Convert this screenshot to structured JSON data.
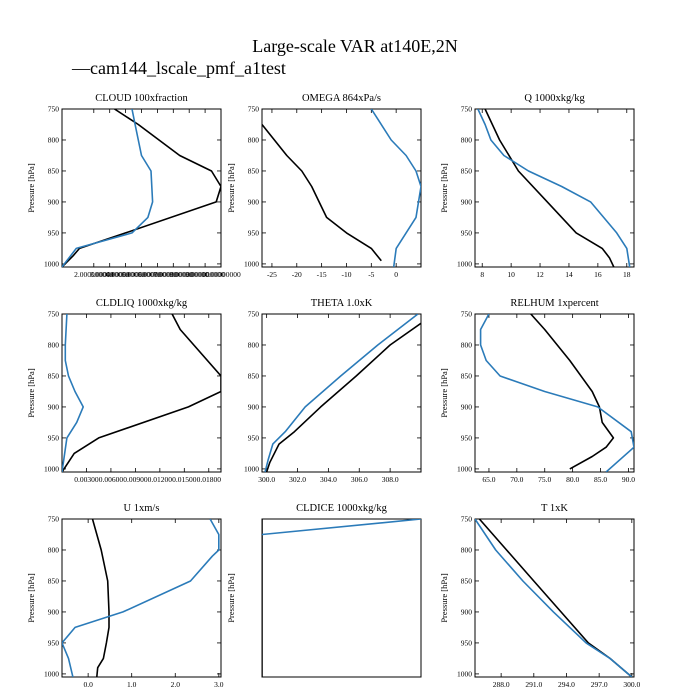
{
  "title": "Large-scale VAR at140E,2N",
  "legend": {
    "label": "cam144_lscale_pmf_a1test",
    "color": "#2b7bb9",
    "glyph": "—"
  },
  "colors": {
    "ref": "#000000",
    "exp": "#2b7bb9"
  },
  "chart_data": [
    {
      "type": "line",
      "title": "CLOUD  100xfraction",
      "ylabel": "Pressure [hPa]",
      "ylim": [
        1005,
        750
      ],
      "yticks": [
        750,
        800,
        850,
        900,
        950,
        1000
      ],
      "xlim": [
        0,
        1.0
      ],
      "xticks": [
        0.2,
        0.3,
        0.4,
        0.5,
        0.6,
        0.7,
        0.8,
        0.9,
        1.0
      ],
      "xticklabels": [
        "2.000000000",
        "3.000000000",
        "4.000000000",
        "5.000000000",
        "6.000000000",
        "7.000000000",
        "8.000000000",
        "9.000000000",
        "10.00000000"
      ],
      "series": [
        {
          "name": "ref",
          "x": [
            0.33,
            0.48,
            0.74,
            0.94,
            1.0,
            0.97,
            0.4,
            0.11,
            0.07,
            0.0
          ],
          "y": [
            750,
            775,
            825,
            850,
            875,
            900,
            950,
            975,
            987,
            1005
          ]
        },
        {
          "name": "exp",
          "x": [
            0.44,
            0.46,
            0.48,
            0.5,
            0.56,
            0.57,
            0.54,
            0.44,
            0.09,
            0.0
          ],
          "y": [
            750,
            775,
            800,
            825,
            850,
            900,
            925,
            950,
            975,
            1005
          ]
        }
      ]
    },
    {
      "type": "line",
      "title": "OMEGA  864xPa/s",
      "ylabel": "Pressure [hPa]",
      "ylim": [
        1005,
        750
      ],
      "yticks": [
        750,
        800,
        850,
        900,
        950,
        1000
      ],
      "xlim": [
        -27,
        5
      ],
      "xticks": [
        -25,
        -20,
        -15,
        -10,
        -5,
        0
      ],
      "xticklabels": [
        "-25",
        "-20",
        "-15",
        "-10",
        "-5",
        "0"
      ],
      "series": [
        {
          "name": "ref",
          "x": [
            -27,
            -22,
            -19,
            -17,
            -15.5,
            -14,
            -10,
            -5,
            -3
          ],
          "y": [
            775,
            825,
            850,
            875,
            900,
            925,
            950,
            975,
            995
          ]
        },
        {
          "name": "exp",
          "x": [
            -5,
            -1,
            2,
            4,
            5,
            4,
            2,
            0,
            -0.5
          ],
          "y": [
            750,
            800,
            825,
            850,
            875,
            925,
            950,
            975,
            1005
          ]
        }
      ]
    },
    {
      "type": "line",
      "title": "Q  1000xkg/kg",
      "ylabel": "Pressure [hPa]",
      "ylim": [
        1005,
        750
      ],
      "yticks": [
        750,
        800,
        850,
        900,
        950,
        1000
      ],
      "xlim": [
        7.5,
        18.5
      ],
      "xticks": [
        8,
        10,
        12,
        14,
        16,
        18
      ],
      "xticklabels": [
        "8",
        "10",
        "12",
        "14",
        "16",
        "18"
      ],
      "series": [
        {
          "name": "ref",
          "x": [
            8.2,
            9.2,
            10.5,
            12.5,
            14.5,
            16.3,
            16.8,
            17.1
          ],
          "y": [
            750,
            800,
            850,
            900,
            950,
            975,
            990,
            1005
          ]
        },
        {
          "name": "exp",
          "x": [
            7.7,
            8.2,
            8.6,
            9.5,
            11.2,
            13.5,
            15.5,
            17.3,
            18.0,
            18.2
          ],
          "y": [
            750,
            775,
            800,
            825,
            850,
            875,
            900,
            950,
            975,
            1005
          ]
        }
      ]
    },
    {
      "type": "line",
      "title": "CLDLIQ  1000xkg/kg",
      "ylabel": "Pressure [hPa]",
      "ylim": [
        1005,
        750
      ],
      "yticks": [
        750,
        800,
        850,
        900,
        950,
        1000
      ],
      "xlim": [
        0,
        0.0195
      ],
      "xticks": [
        0.003,
        0.006,
        0.009,
        0.012,
        0.015,
        0.018
      ],
      "xticklabels": [
        "0.00300",
        "0.00600",
        "0.00900",
        "0.01200",
        "0.01500",
        "0.01800"
      ],
      "series": [
        {
          "name": "ref",
          "x": [
            0.0135,
            0.0145,
            0.0195,
            0.0195,
            0.0155,
            0.0045,
            0.0015,
            0.0
          ],
          "y": [
            750,
            775,
            850,
            875,
            900,
            950,
            975,
            1005
          ]
        },
        {
          "name": "exp",
          "x": [
            0.0006,
            0.0004,
            0.0004,
            0.0008,
            0.0016,
            0.0026,
            0.0018,
            0.0006,
            0.0
          ],
          "y": [
            750,
            800,
            825,
            850,
            875,
            900,
            925,
            950,
            1005
          ]
        }
      ]
    },
    {
      "type": "line",
      "title": "THETA  1.0xK",
      "ylabel": "",
      "ylim": [
        1005,
        750
      ],
      "yticks": [
        750,
        800,
        850,
        900,
        950,
        1000
      ],
      "xlim": [
        299.7,
        310.0
      ],
      "xticks": [
        300,
        302,
        304,
        306,
        308
      ],
      "xticklabels": [
        "300.0",
        "302.0",
        "304.0",
        "306.0",
        "308.0"
      ],
      "series": [
        {
          "name": "ref",
          "x": [
            310.0,
            308.0,
            305.8,
            303.5,
            301.8,
            300.8,
            300.2,
            300.0
          ],
          "y": [
            765,
            800,
            850,
            900,
            940,
            960,
            990,
            1005
          ]
        },
        {
          "name": "exp",
          "x": [
            309.8,
            307.2,
            304.8,
            302.5,
            301.2,
            300.4,
            300.1,
            299.9
          ],
          "y": [
            750,
            800,
            850,
            900,
            940,
            960,
            985,
            1005
          ]
        }
      ]
    },
    {
      "type": "line",
      "title": "RELHUM  1xpercent",
      "ylabel": "Pressure [hPa]",
      "ylim": [
        1005,
        750
      ],
      "yticks": [
        750,
        800,
        850,
        900,
        950,
        1000
      ],
      "xlim": [
        62.5,
        91.0
      ],
      "xticks": [
        65,
        70,
        75,
        80,
        85,
        90
      ],
      "xticklabels": [
        "65.0",
        "70.0",
        "75.0",
        "80.0",
        "85.0",
        "90.0"
      ],
      "series": [
        {
          "name": "ref",
          "x": [
            72.5,
            75.0,
            79.5,
            83.5,
            84.8,
            85.3,
            87.3,
            86.0,
            83.5,
            79.5
          ],
          "y": [
            750,
            775,
            825,
            875,
            900,
            925,
            950,
            965,
            980,
            1000
          ]
        },
        {
          "name": "exp",
          "x": [
            65.0,
            63.5,
            63.5,
            64.5,
            67.0,
            75.0,
            84.5,
            90.5,
            91.0,
            86.0
          ],
          "y": [
            750,
            775,
            800,
            825,
            850,
            875,
            900,
            940,
            965,
            1005
          ]
        }
      ]
    },
    {
      "type": "line",
      "title": "U  1xm/s",
      "ylabel": "Pressure [hPa]",
      "ylim": [
        1005,
        750
      ],
      "yticks": [
        750,
        800,
        850,
        900,
        950,
        1000
      ],
      "xlim": [
        -0.6,
        3.05
      ],
      "xticks": [
        0,
        1,
        2,
        3
      ],
      "xticklabels": [
        "0.0",
        "1.0",
        "2.0",
        "3.0"
      ],
      "series": [
        {
          "name": "ref",
          "x": [
            0.1,
            0.3,
            0.45,
            0.48,
            0.48,
            0.42,
            0.35,
            0.22,
            0.2
          ],
          "y": [
            750,
            800,
            850,
            900,
            925,
            950,
            975,
            990,
            1005
          ]
        },
        {
          "name": "exp",
          "x": [
            2.8,
            3.0,
            3.0,
            2.85,
            2.35,
            0.8,
            -0.3,
            -0.6,
            -0.45,
            -0.35
          ],
          "y": [
            750,
            775,
            800,
            810,
            850,
            900,
            925,
            950,
            975,
            1005
          ]
        }
      ]
    },
    {
      "type": "line",
      "title": "CLDICE  1000xkg/kg",
      "ylabel": "Pressure [hPa]",
      "ylim": [
        1005,
        750
      ],
      "yticks": [],
      "xlim": [
        0,
        1
      ],
      "xticks": [],
      "xticklabels": [],
      "series": [
        {
          "name": "ref",
          "x": [
            0,
            0
          ],
          "y": [
            750,
            1005
          ]
        },
        {
          "name": "exp",
          "x": [
            0,
            1
          ],
          "y": [
            775,
            750
          ]
        }
      ]
    },
    {
      "type": "line",
      "title": "T  1xK",
      "ylabel": "Pressure [hPa]",
      "ylim": [
        1005,
        750
      ],
      "yticks": [
        750,
        800,
        850,
        900,
        950,
        1000
      ],
      "xlim": [
        285.6,
        300.2
      ],
      "xticks": [
        288,
        291,
        294,
        297,
        300
      ],
      "xticklabels": [
        "288.0",
        "291.0",
        "294.0",
        "297.0",
        "300.0"
      ],
      "series": [
        {
          "name": "ref",
          "x": [
            286.0,
            288.5,
            291.0,
            293.5,
            296.0,
            298.0,
            300.0
          ],
          "y": [
            750,
            800,
            850,
            900,
            950,
            975,
            1005
          ]
        },
        {
          "name": "exp",
          "x": [
            285.6,
            287.5,
            290.0,
            292.8,
            295.8,
            298.0,
            300.0
          ],
          "y": [
            750,
            800,
            850,
            900,
            950,
            975,
            1005
          ]
        }
      ]
    }
  ]
}
